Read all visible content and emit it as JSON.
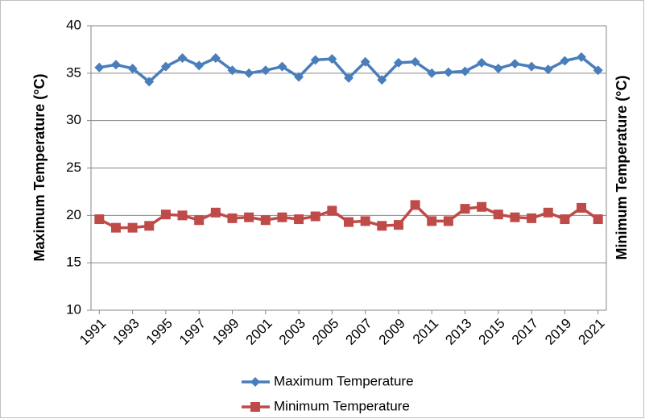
{
  "chart_data": {
    "type": "line",
    "y_label": "Maximum Temperature (°C)",
    "y2_label": "Minimum Temperature (°C)",
    "x": [
      1991,
      1992,
      1993,
      1994,
      1995,
      1996,
      1997,
      1998,
      1999,
      2000,
      2001,
      2002,
      2003,
      2004,
      2005,
      2006,
      2007,
      2008,
      2009,
      2010,
      2011,
      2012,
      2013,
      2014,
      2015,
      2016,
      2017,
      2018,
      2019,
      2020,
      2021
    ],
    "xlim": [
      1990.5,
      2021.5
    ],
    "xticks": [
      1991,
      1993,
      1995,
      1997,
      1999,
      2001,
      2003,
      2005,
      2007,
      2009,
      2011,
      2013,
      2015,
      2017,
      2019,
      2021
    ],
    "ylim": [
      10,
      40
    ],
    "yticks": [
      10,
      15,
      20,
      25,
      30,
      35,
      40
    ],
    "legend": "bottom",
    "series": [
      {
        "name": "Maximum Temperature",
        "color": "#4a7ebb",
        "marker": "diamond",
        "values": [
          35.6,
          35.9,
          35.5,
          34.1,
          35.7,
          36.6,
          35.8,
          36.6,
          35.3,
          35.0,
          35.3,
          35.7,
          34.6,
          36.4,
          36.5,
          34.5,
          36.2,
          34.3,
          36.1,
          36.2,
          35.0,
          35.1,
          35.2,
          36.1,
          35.5,
          36.0,
          35.7,
          35.4,
          36.3,
          36.7,
          35.3
        ]
      },
      {
        "name": "Minimum Temperature",
        "color": "#be4b48",
        "marker": "square",
        "values": [
          19.6,
          18.7,
          18.7,
          18.9,
          20.1,
          20.0,
          19.5,
          20.3,
          19.7,
          19.8,
          19.5,
          19.8,
          19.6,
          19.9,
          20.5,
          19.3,
          19.4,
          18.9,
          19.0,
          21.1,
          19.4,
          19.4,
          20.7,
          20.9,
          20.1,
          19.8,
          19.7,
          20.3,
          19.6,
          20.8,
          19.6
        ]
      }
    ]
  }
}
